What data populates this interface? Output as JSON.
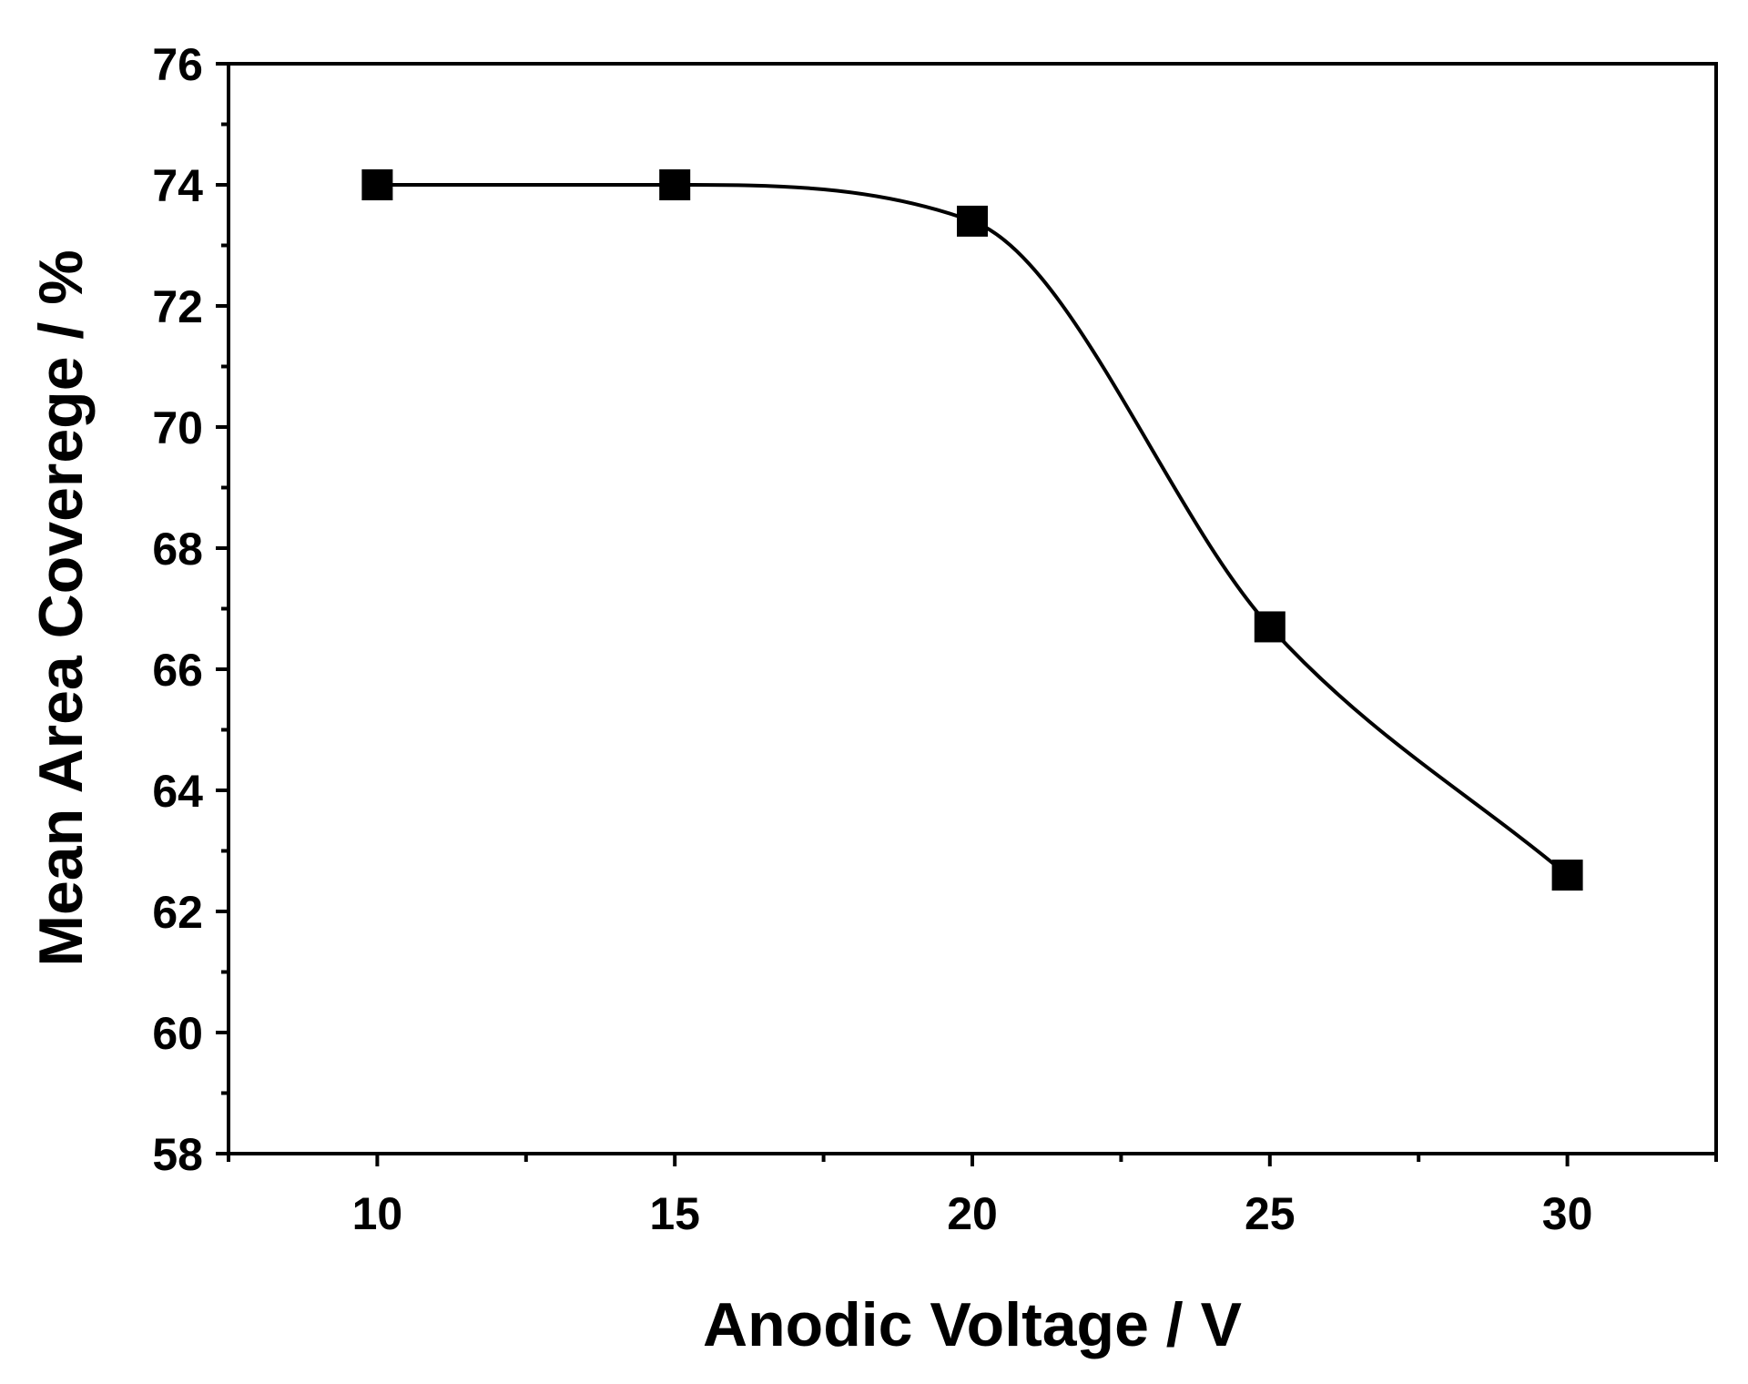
{
  "chart_data": {
    "type": "line",
    "title": "",
    "xlabel": "Anodic Voltage  /  V",
    "ylabel": "Mean Area Coverege  /  %",
    "xlim": [
      7.5,
      32.5
    ],
    "ylim": [
      58,
      76
    ],
    "xticks": [
      10,
      15,
      20,
      25,
      30
    ],
    "yticks": [
      58,
      60,
      62,
      64,
      66,
      68,
      70,
      72,
      74,
      76
    ],
    "xtick_labels": [
      "10",
      "15",
      "20",
      "25",
      "30"
    ],
    "ytick_labels": [
      "58",
      "60",
      "62",
      "64",
      "66",
      "68",
      "70",
      "72",
      "74",
      "76"
    ],
    "series": [
      {
        "x": [
          10,
          15,
          20,
          25,
          30
        ],
        "y": [
          74.0,
          74.0,
          73.4,
          66.7,
          62.6
        ],
        "marker": "square",
        "line": "smooth",
        "color": "#000000"
      }
    ],
    "grid": false,
    "legend": "none"
  }
}
